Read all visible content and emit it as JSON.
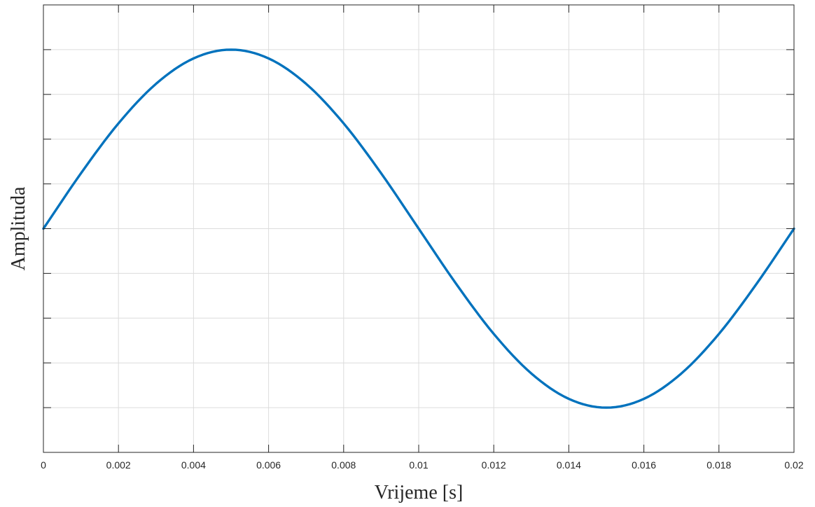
{
  "chart_data": {
    "type": "line",
    "title": "",
    "xlabel": "Vrijeme [s]",
    "ylabel": "Amplituda",
    "xlim": [
      0,
      0.02
    ],
    "ylim": [
      -1.25,
      1.25
    ],
    "x_ticks": [
      "0",
      "0.002",
      "0.004",
      "0.006",
      "0.008",
      "0.01",
      "0.012",
      "0.014",
      "0.016",
      "0.018",
      "0.02"
    ],
    "x_tick_values": [
      0,
      0.002,
      0.004,
      0.006,
      0.008,
      0.01,
      0.012,
      0.014,
      0.016,
      0.018,
      0.02
    ],
    "y_tick_values": [
      -1,
      -0.75,
      -0.5,
      -0.25,
      0,
      0.25,
      0.5,
      0.75,
      1
    ],
    "y_tick_labels_visible": false,
    "grid": true,
    "series": [
      {
        "color": "#0072bd",
        "x": [
          0,
          0.001,
          0.002,
          0.003,
          0.004,
          0.005,
          0.006,
          0.007,
          0.008,
          0.009,
          0.01,
          0.011,
          0.012,
          0.013,
          0.014,
          0.015,
          0.016,
          0.017,
          0.018,
          0.019,
          0.02
        ],
        "y": [
          0,
          0.309,
          0.588,
          0.809,
          0.951,
          1.0,
          0.951,
          0.809,
          0.588,
          0.309,
          0,
          -0.309,
          -0.588,
          -0.809,
          -0.951,
          -1.0,
          -0.951,
          -0.809,
          -0.588,
          -0.309,
          0
        ]
      }
    ]
  }
}
